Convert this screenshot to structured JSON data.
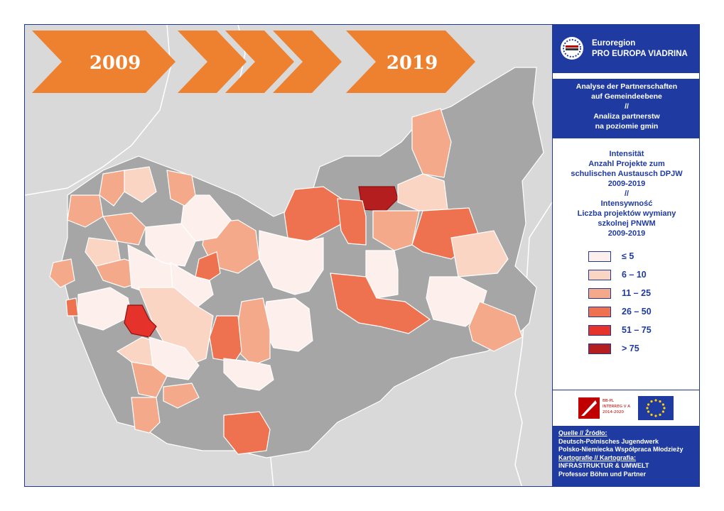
{
  "banner": {
    "year_start": "2009",
    "year_end": "2019"
  },
  "org": {
    "line1": "Euroregion",
    "line2": "PRO EUROPA VIADRINA"
  },
  "titles": {
    "de1": "Analyse der Partnerschaften",
    "de2": "auf Gemeindeebene",
    "sep": "//",
    "pl1": "Analiza partnerstw",
    "pl2": "na poziomie gmin"
  },
  "legend": {
    "title_lines": [
      "Intensität",
      "Anzahl Projekte zum",
      "schulischen Austausch DPJW",
      "2009-2019",
      "//",
      "Intensywność",
      "Liczba projektów  wymiany",
      "szkolnej PNWM",
      "2009-2019"
    ],
    "classes": [
      {
        "label": "≤ 5",
        "color": "#fdf0ec"
      },
      {
        "label": "6 – 10",
        "color": "#fbd5c4"
      },
      {
        "label": "11 – 25",
        "color": "#f4a98a"
      },
      {
        "label": "26 – 50",
        "color": "#ef7250"
      },
      {
        "label": "51 – 75",
        "color": "#e5322b"
      },
      {
        "label": "> 75",
        "color": "#b41e1e"
      }
    ]
  },
  "funding": {
    "l1": "BB-PL",
    "l2": "INTERREG V A",
    "l3": "2014-2020"
  },
  "source": {
    "h1": "Quelle // Źródło:",
    "s1": "Deutsch-Polnisches Jugendwerk",
    "s2": "Polsko-Niemiecka Współpraca Młodzieży",
    "h2": "Kartografie // Kartografia:",
    "c1": "INFRASTRUKTUR & UMWELT",
    "c2": "Professor Böhm und Partner"
  },
  "colors": {
    "navy": "#1f3aa0",
    "orange": "#ee8130",
    "background": "#d9d9d9",
    "outside": "#a6a6a6"
  }
}
